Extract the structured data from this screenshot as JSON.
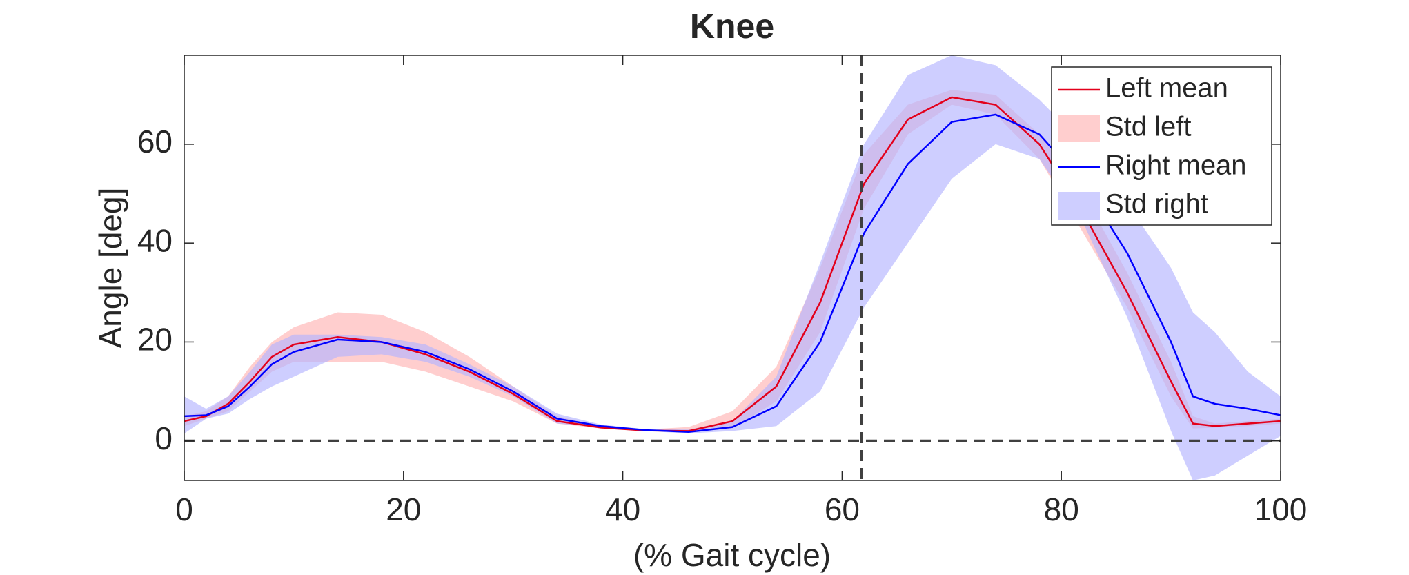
{
  "chart_data": {
    "type": "line",
    "title": "Knee",
    "xlabel": "(% Gait cycle)",
    "ylabel": "Angle [deg]",
    "x": [
      0,
      2,
      4,
      6,
      8,
      10,
      14,
      18,
      22,
      26,
      30,
      34,
      38,
      42,
      46,
      50,
      54,
      58,
      62,
      66,
      70,
      74,
      78,
      82,
      86,
      90,
      92,
      94,
      97,
      100
    ],
    "series": [
      {
        "name": "Left mean",
        "color": "#e3001b",
        "values": [
          4,
          5,
          7.5,
          12,
          17,
          19.5,
          21,
          20,
          17.5,
          14,
          9.5,
          4,
          2.7,
          2.1,
          2,
          4,
          11,
          28,
          52,
          65,
          69.5,
          68,
          60,
          46,
          30,
          12,
          3.5,
          3,
          3.5,
          4
        ]
      },
      {
        "name": "Std left",
        "color": "#ffb3b3",
        "upper": [
          5,
          6,
          9,
          15,
          20,
          23,
          26,
          25.5,
          22,
          17,
          11,
          5,
          3,
          2.3,
          2.8,
          6,
          15,
          35,
          58,
          68,
          71,
          70,
          62,
          50,
          34,
          16,
          5,
          3.5,
          4,
          4.5
        ],
        "lower": [
          3,
          4.5,
          6,
          10,
          14,
          16,
          16,
          16,
          14,
          11,
          8,
          3.5,
          2.5,
          2,
          1.8,
          2.5,
          8,
          22,
          47,
          62,
          68,
          66,
          57,
          42,
          27,
          9,
          2.5,
          2.7,
          3,
          3.5
        ]
      },
      {
        "name": "Right mean",
        "color": "#0000ff",
        "values": [
          5,
          5.2,
          7,
          11,
          15.5,
          18,
          20.5,
          20,
          18,
          14.5,
          10,
          4.5,
          3,
          2.2,
          1.8,
          2.8,
          7,
          20,
          42,
          56,
          64.5,
          66,
          62,
          52,
          38,
          20,
          9,
          7.5,
          6.5,
          5.2
        ]
      },
      {
        "name": "Std right",
        "color": "#b3b3ff",
        "upper": [
          9,
          6.5,
          9,
          14,
          19.5,
          21.5,
          21.5,
          21,
          19.5,
          15.5,
          11,
          5.5,
          3.3,
          2.4,
          2.3,
          4,
          13,
          36,
          60,
          74,
          78,
          76,
          69,
          60,
          48,
          35,
          26,
          22,
          14,
          9
        ],
        "lower": [
          1.5,
          4.5,
          5.5,
          8.5,
          11,
          13,
          17,
          17.5,
          16,
          13,
          9,
          3.5,
          2.8,
          2,
          1.5,
          2,
          3,
          10,
          27,
          40,
          53,
          60,
          57,
          44,
          25,
          2,
          -8,
          -7,
          -3,
          1
        ]
      }
    ],
    "reference_lines": {
      "x": 61.8,
      "y": 0
    },
    "xlim": [
      0,
      100
    ],
    "xticks": [
      0,
      20,
      40,
      60,
      80,
      100
    ],
    "ylim": [
      -8,
      78
    ],
    "yticks": [
      0,
      20,
      40,
      60
    ],
    "legend": "upper right"
  }
}
